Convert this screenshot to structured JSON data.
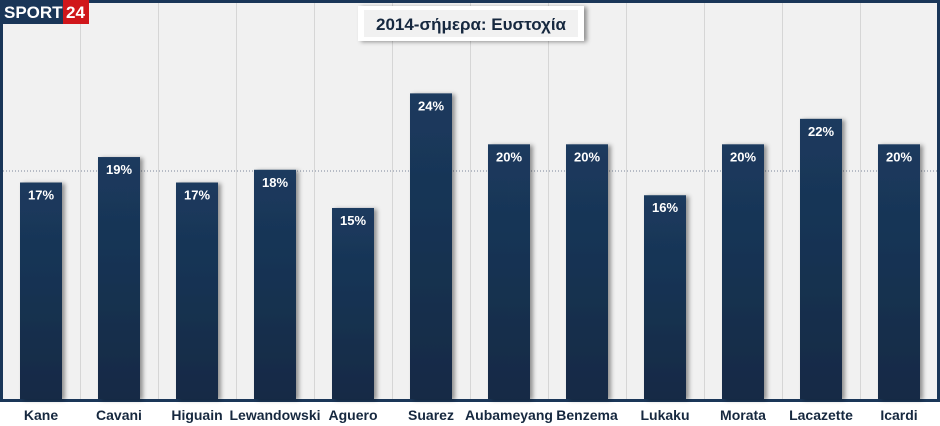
{
  "brand": {
    "logo_text": "SPORT",
    "logo_number": "24",
    "primary": "#1a3658",
    "accent": "#d0161b"
  },
  "chart_data": {
    "type": "bar",
    "title": "2014-σήμερα: Ευστοχία",
    "xlabel": "",
    "ylabel": "",
    "categories": [
      "Kane",
      "Cavani",
      "Higuain",
      "Lewandowski",
      "Aguero",
      "Suarez",
      "Aubameyang",
      "Benzema",
      "Lukaku",
      "Morata",
      "Lacazette",
      "Icardi"
    ],
    "values": [
      17,
      19,
      17,
      18,
      15,
      24,
      20,
      20,
      16,
      20,
      22,
      20
    ],
    "value_labels": [
      "17%",
      "19%",
      "17%",
      "18%",
      "15%",
      "24%",
      "20%",
      "20%",
      "16%",
      "20%",
      "22%",
      "20%"
    ],
    "ylim": [
      0,
      24.5
    ],
    "reference_line": 19,
    "bar_color": "#17304f",
    "background": "#f1f1f1"
  }
}
